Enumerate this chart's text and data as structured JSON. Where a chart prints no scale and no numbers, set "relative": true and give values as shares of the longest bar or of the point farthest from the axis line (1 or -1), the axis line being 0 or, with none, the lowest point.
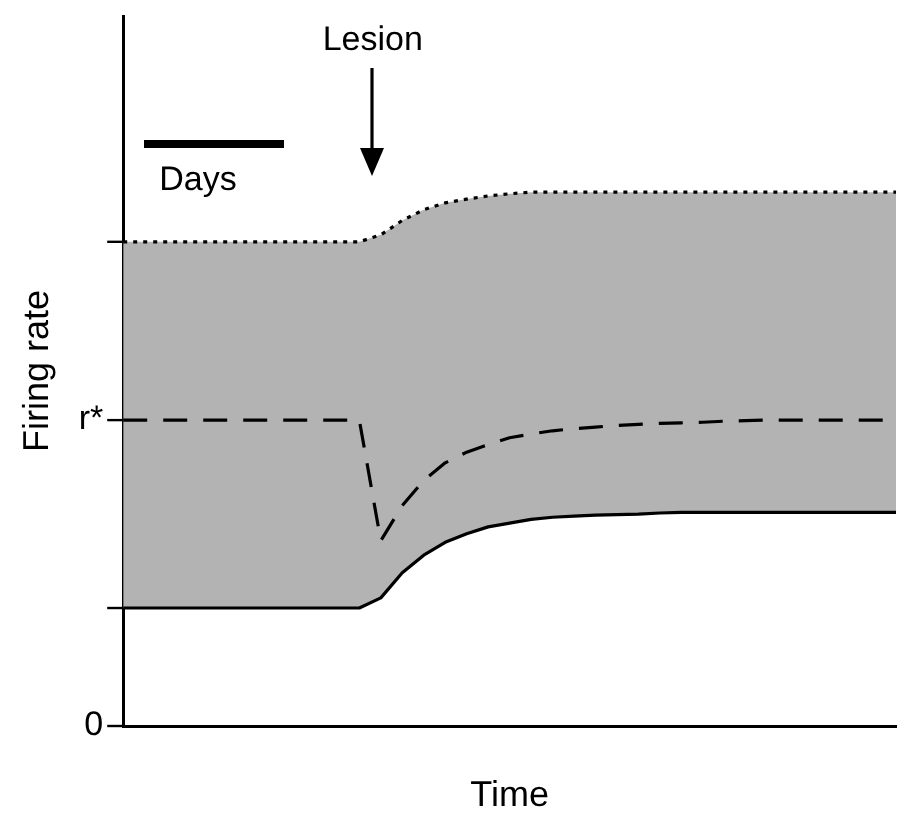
{
  "chart_data": {
    "type": "line",
    "xlabel": "Time",
    "ylabel": "Firing rate",
    "relative": true,
    "categories": [
      null,
      null,
      null,
      null,
      null,
      null,
      null,
      null,
      null,
      null,
      null,
      null,
      null,
      null,
      null,
      null,
      null,
      null,
      null,
      null,
      null,
      null,
      null,
      null,
      null,
      null,
      null,
      null,
      null,
      null,
      null,
      null,
      null,
      null,
      null,
      null,
      null
    ],
    "series": [
      {
        "color": "#000000",
        "line_style": "solid",
        "values": [
          0.221,
          0.221,
          0.221,
          0.221,
          0.221,
          0.221,
          0.221,
          0.221,
          0.221,
          0.221,
          0.221,
          0.221,
          0.24,
          0.287,
          0.32,
          0.344,
          0.36,
          0.373,
          0.38,
          0.387,
          0.391,
          0.393,
          0.395,
          0.396,
          0.397,
          0.399,
          0.4,
          0.4,
          0.4,
          0.4,
          0.4,
          0.4,
          0.4,
          0.4,
          0.4,
          0.4,
          0.4
        ]
      },
      {
        "type": "area",
        "color": "#b3b3b3",
        "line_style": "dotted",
        "values": [
          0.907,
          0.907,
          0.907,
          0.907,
          0.907,
          0.907,
          0.907,
          0.907,
          0.907,
          0.907,
          0.907,
          0.907,
          0.92,
          0.947,
          0.967,
          0.98,
          0.987,
          0.993,
          0.997,
          1,
          1,
          1,
          1,
          1,
          1,
          1,
          1,
          1,
          1,
          1,
          1,
          1,
          1,
          1,
          1,
          1,
          1
        ]
      },
      {
        "color": "#000000",
        "line_style": "dashed",
        "values": [
          0.573,
          0.573,
          0.573,
          0.573,
          0.573,
          0.573,
          0.573,
          0.573,
          0.573,
          0.573,
          0.573,
          0.573,
          0.347,
          0.413,
          0.46,
          0.493,
          0.513,
          0.527,
          0.54,
          0.547,
          0.553,
          0.557,
          0.56,
          0.563,
          0.565,
          0.567,
          0.568,
          0.569,
          0.571,
          0.572,
          0.573,
          0.573,
          0.573,
          0.573,
          0.573,
          0.573,
          0.573
        ]
      }
    ],
    "grid": false,
    "legend": false,
    "marker": "none",
    "annotations": [
      "Lesion",
      "Days",
      "0",
      "r*"
    ]
  }
}
